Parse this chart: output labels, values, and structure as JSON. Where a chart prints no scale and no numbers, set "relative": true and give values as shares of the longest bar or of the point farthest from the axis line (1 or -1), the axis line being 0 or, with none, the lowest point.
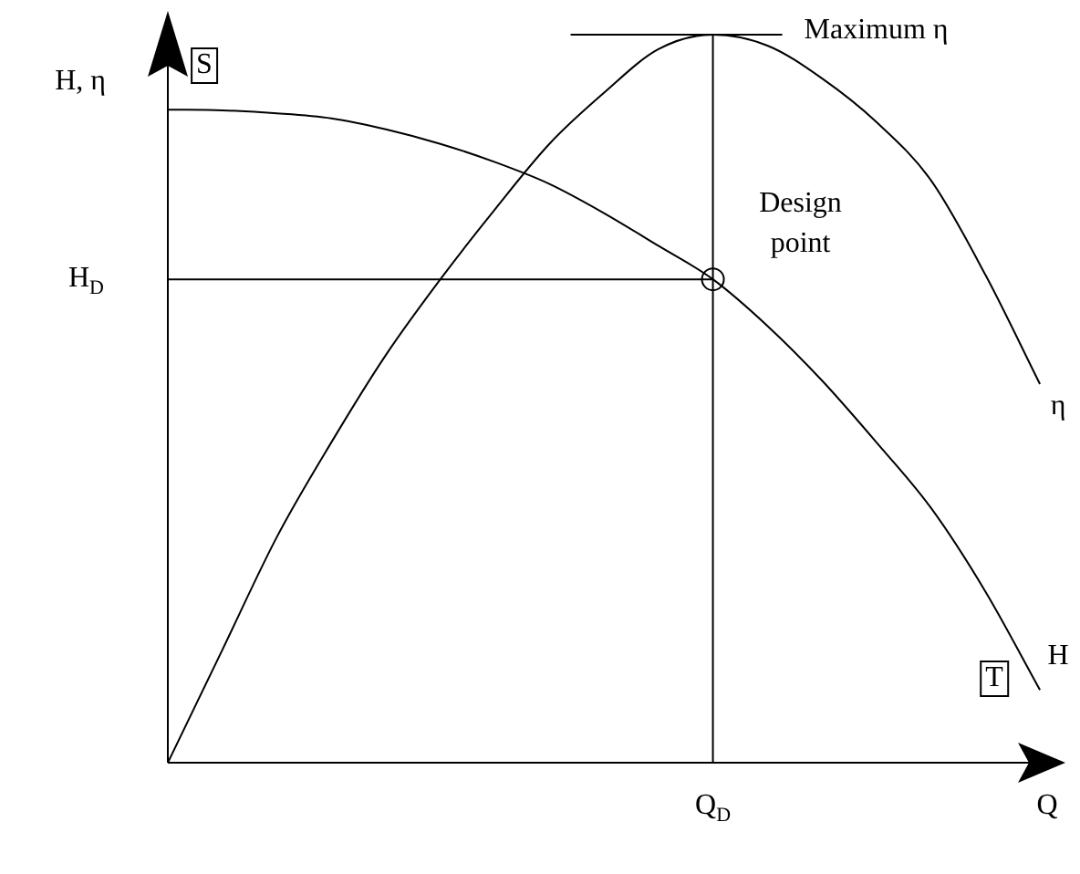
{
  "chart_data": {
    "type": "line",
    "relative": true,
    "ylabel": "H, η",
    "xlabel": "Q",
    "marker": "none",
    "categories": [
      null,
      null,
      null,
      null,
      null,
      null,
      null,
      null,
      null,
      null,
      null,
      null,
      null,
      null,
      null,
      null,
      null
    ],
    "series": [
      {
        "name": "η",
        "color": "#000000",
        "values": [
          0.0,
          0.155,
          0.31,
          0.44,
          0.56,
          0.664,
          0.76,
          0.85,
          0.92,
          0.98,
          1.0,
          0.985,
          0.94,
          0.88,
          0.8,
          0.67,
          0.52
        ]
      },
      {
        "name": "H",
        "color": "#000000",
        "values": [
          0.897,
          0.896,
          0.892,
          0.885,
          0.87,
          0.85,
          0.825,
          0.795,
          0.755,
          0.71,
          0.664,
          0.6,
          0.525,
          0.44,
          0.35,
          0.235,
          0.1
        ]
      }
    ],
    "ref_lines": [
      {
        "axis": "x",
        "value": "Q$_{D}$"
      },
      {
        "axis": "y",
        "value": 0.664,
        "label": "H$_{D}$"
      },
      {
        "axis": "y",
        "value": 1.0,
        "label": "Maximum η"
      }
    ],
    "annotations": [
      "S",
      "T",
      "Design point"
    ]
  }
}
